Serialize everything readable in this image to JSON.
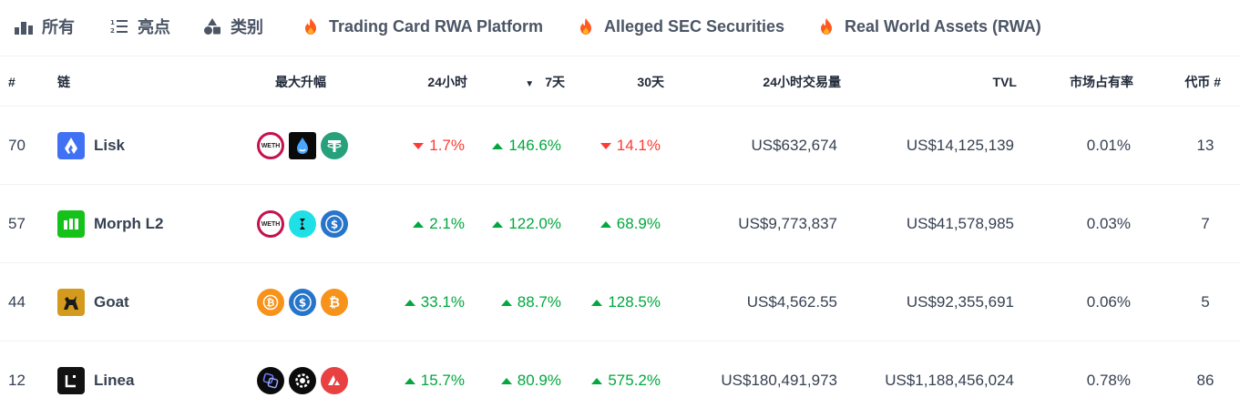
{
  "tabs": [
    {
      "label": "所有",
      "icon": "podium-icon"
    },
    {
      "label": "亮点",
      "icon": "list-icon"
    },
    {
      "label": "类别",
      "icon": "shapes-icon"
    },
    {
      "label": "Trading Card RWA Platform",
      "icon": "fire-icon"
    },
    {
      "label": "Alleged SEC Securities",
      "icon": "fire-icon"
    },
    {
      "label": "Real World Assets (RWA)",
      "icon": "fire-icon"
    }
  ],
  "columns": {
    "rank": "#",
    "chain": "链",
    "top_gainers": "最大升幅",
    "h24": "24小时",
    "d7": "7天",
    "d30": "30天",
    "volume": "24小时交易量",
    "tvl": "TVL",
    "share": "市场占有率",
    "tokens": "代币 #"
  },
  "rows": [
    {
      "rank": "70",
      "chain": "Lisk",
      "logo_color": "#4070f4",
      "token_icons": [
        "weth-icon",
        "lisk-token-icon",
        "tether-icon"
      ],
      "h24": "1.7%",
      "h24_dir": "down",
      "d7": "146.6%",
      "d7_dir": "up",
      "d30": "14.1%",
      "d30_dir": "down",
      "volume": "US$632,674",
      "tvl": "US$14,125,139",
      "share": "0.01%",
      "tokens": "13"
    },
    {
      "rank": "57",
      "chain": "Morph L2",
      "logo_color": "#14c21a",
      "token_icons": [
        "weth-icon",
        "bitget-icon",
        "usdc-icon"
      ],
      "h24": "2.1%",
      "h24_dir": "up",
      "d7": "122.0%",
      "d7_dir": "up",
      "d30": "68.9%",
      "d30_dir": "up",
      "volume": "US$9,773,837",
      "tvl": "US$41,578,985",
      "share": "0.03%",
      "tokens": "7"
    },
    {
      "rank": "44",
      "chain": "Goat",
      "logo_color": "#d39a1e",
      "token_icons": [
        "wrapped-btc-icon",
        "usdc-icon",
        "bitcoin-icon"
      ],
      "h24": "33.1%",
      "h24_dir": "up",
      "d7": "88.7%",
      "d7_dir": "up",
      "d30": "128.5%",
      "d30_dir": "up",
      "volume": "US$4,562.55",
      "tvl": "US$92,355,691",
      "share": "0.06%",
      "tokens": "5"
    },
    {
      "rank": "12",
      "chain": "Linea",
      "logo_color": "#121212",
      "token_icons": [
        "linea-token-icon",
        "gear-token-icon",
        "avalanche-icon"
      ],
      "h24": "15.7%",
      "h24_dir": "up",
      "d7": "80.9%",
      "d7_dir": "up",
      "d30": "575.2%",
      "d30_dir": "up",
      "volume": "US$180,491,973",
      "tvl": "US$1,188,456,024",
      "share": "0.78%",
      "tokens": "86"
    }
  ],
  "colors": {
    "up": "#00a83e",
    "down": "#ff3a33",
    "fire": "#ff5a1f"
  }
}
